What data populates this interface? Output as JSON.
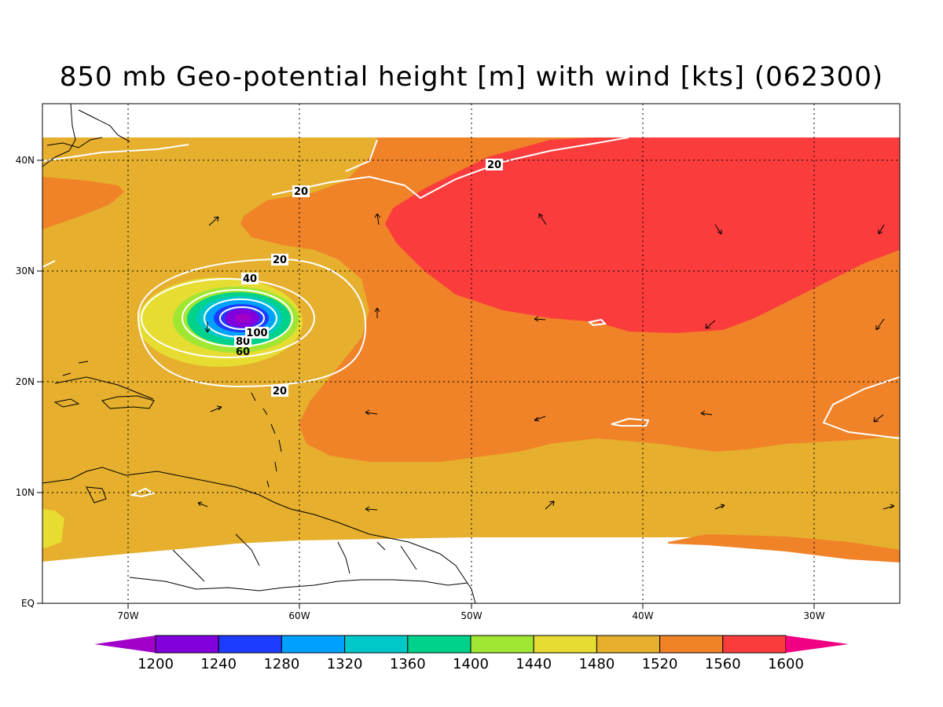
{
  "title": "850 mb Geo-potential height [m] with wind [kts] (062300)",
  "axes": {
    "lon_ticks": [
      "70W",
      "60W",
      "50W",
      "40W",
      "30W"
    ],
    "lat_ticks": [
      "EQ",
      "10N",
      "20N",
      "30N",
      "40N"
    ],
    "lon_range": [
      -75,
      -25
    ],
    "lat_range": [
      0,
      45
    ]
  },
  "colorbar": {
    "levels": [
      "1200",
      "1240",
      "1280",
      "1320",
      "1360",
      "1400",
      "1440",
      "1480",
      "1520",
      "1560",
      "1600"
    ],
    "colors": [
      "#a000c8",
      "#8200dc",
      "#1e3cff",
      "#00a0ff",
      "#00c8c8",
      "#00d28c",
      "#a0e632",
      "#e6dc32",
      "#e6af2d",
      "#f08228",
      "#fa3c3c",
      "#f00082"
    ]
  },
  "wind_contours": [
    "20",
    "20",
    "20",
    "40",
    "20",
    "80",
    "100",
    "60"
  ],
  "chart_data": {
    "type": "heatmap",
    "title": "850 mb Geo-potential height [m] with wind [kts] (062300)",
    "variable": "geopotential height (m) with wind speed contours (kts)",
    "units": "m",
    "x_ticks": [
      "70W",
      "60W",
      "50W",
      "40W",
      "30W"
    ],
    "y_ticks": [
      "EQ",
      "10N",
      "20N",
      "30N",
      "40N"
    ],
    "color_levels": [
      1200,
      1240,
      1280,
      1320,
      1360,
      1400,
      1440,
      1480,
      1520,
      1560,
      1600
    ],
    "wind_contour_levels": [
      20,
      40,
      60,
      80,
      100
    ],
    "storm_center": {
      "lon": -63,
      "lat": 25.8
    },
    "grid": true
  }
}
